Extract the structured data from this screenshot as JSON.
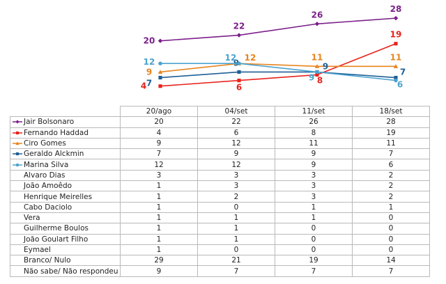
{
  "chart_data": {
    "type": "line",
    "categories": [
      "20/ago",
      "04/set",
      "11/set",
      "18/set"
    ],
    "ylim": [
      0,
      30
    ],
    "grid": false,
    "legend": "table-left",
    "series": [
      {
        "name": "Jair Bolsonaro",
        "values": [
          20,
          22,
          26,
          28
        ],
        "color": "#7b1f8a",
        "marker": "diamond"
      },
      {
        "name": "Fernando Haddad",
        "values": [
          4,
          6,
          8,
          19
        ],
        "color": "#e8221c",
        "marker": "square"
      },
      {
        "name": "Ciro Gomes",
        "values": [
          9,
          12,
          11,
          11
        ],
        "color": "#e8841f",
        "marker": "triangle"
      },
      {
        "name": "Geraldo Alckmin",
        "values": [
          7,
          9,
          9,
          7
        ],
        "color": "#1f5f96",
        "marker": "square"
      },
      {
        "name": "Marina Silva",
        "values": [
          12,
          12,
          9,
          6
        ],
        "color": "#4ba3cf",
        "marker": "circle"
      }
    ],
    "table_rows": [
      {
        "name": "Jair Bolsonaro",
        "values": [
          20,
          22,
          26,
          28
        ],
        "color": "#7b1f8a",
        "marker": "diamond"
      },
      {
        "name": "Fernando Haddad",
        "values": [
          4,
          6,
          8,
          19
        ],
        "color": "#e8221c",
        "marker": "square"
      },
      {
        "name": "Ciro Gomes",
        "values": [
          9,
          12,
          11,
          11
        ],
        "color": "#e8841f",
        "marker": "triangle"
      },
      {
        "name": "Geraldo Alckmin",
        "values": [
          7,
          9,
          9,
          7
        ],
        "color": "#1f5f96",
        "marker": "square"
      },
      {
        "name": "Marina Silva",
        "values": [
          12,
          12,
          9,
          6
        ],
        "color": "#4ba3cf",
        "marker": "circle"
      },
      {
        "name": "Alvaro Dias",
        "values": [
          3,
          3,
          3,
          2
        ],
        "color": "",
        "marker": ""
      },
      {
        "name": "João Amoêdo",
        "values": [
          1,
          3,
          3,
          2
        ],
        "color": "",
        "marker": ""
      },
      {
        "name": "Henrique Meirelles",
        "values": [
          1,
          2,
          3,
          2
        ],
        "color": "",
        "marker": ""
      },
      {
        "name": "Cabo Daciolo",
        "values": [
          1,
          0,
          1,
          1
        ],
        "color": "",
        "marker": ""
      },
      {
        "name": "Vera",
        "values": [
          1,
          1,
          1,
          0
        ],
        "color": "",
        "marker": ""
      },
      {
        "name": "Guilherme Boulos",
        "values": [
          1,
          1,
          0,
          0
        ],
        "color": "",
        "marker": ""
      },
      {
        "name": "João Goulart Filho",
        "values": [
          1,
          1,
          0,
          0
        ],
        "color": "",
        "marker": ""
      },
      {
        "name": "Eymael",
        "values": [
          1,
          0,
          0,
          0
        ],
        "color": "",
        "marker": ""
      },
      {
        "name": "Branco/ Nulo",
        "values": [
          29,
          21,
          19,
          14
        ],
        "color": "",
        "marker": ""
      },
      {
        "name": "Não sabe/ Não respondeu",
        "values": [
          9,
          7,
          7,
          7
        ],
        "color": "",
        "marker": ""
      }
    ]
  }
}
